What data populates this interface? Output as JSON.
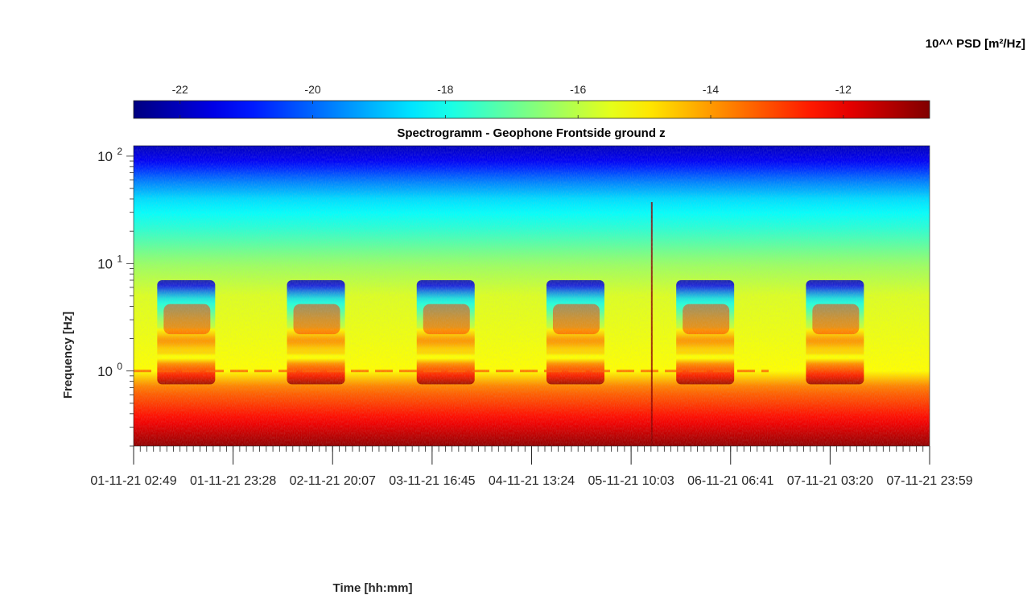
{
  "chart_data": {
    "type": "heatmap",
    "title": "Spectrogramm - Geophone Frontside ground z",
    "xlabel": "Time [hh:mm]",
    "ylabel": "Frequency [Hz]",
    "colorbar": {
      "label": "10^^ PSD [m²/Hz]",
      "colormap": "jet",
      "range": [
        -22.7,
        -10.7
      ],
      "ticks": [
        -22,
        -20,
        -18,
        -16,
        -14,
        -12
      ],
      "tick_labels": [
        "-22",
        "-20",
        "-18",
        "-16",
        "-14",
        "-12"
      ]
    },
    "x_tick_labels": [
      "01-11-21  02:49",
      "01-11-21  23:28",
      "02-11-21  20:07",
      "03-11-21  16:45",
      "04-11-21  13:24",
      "05-11-21  10:03",
      "06-11-21  06:41",
      "07-11-21  03:20",
      "07-11-21  23:59"
    ],
    "xlim": [
      "01-11-21 02:49",
      "07-11-21 23:59"
    ],
    "y_scale": "log",
    "ylim": [
      0.2,
      125
    ],
    "y_ticks": [
      1,
      10,
      100
    ],
    "y_tick_labels": [
      {
        "base": "10",
        "exp": "0"
      },
      {
        "base": "10",
        "exp": "1"
      },
      {
        "base": "10",
        "exp": "2"
      }
    ],
    "features": {
      "daytime_activity_band_hz": [
        2.0,
        5.0
      ],
      "daytime_activity_days": 6,
      "constant_line_hz": 1.0,
      "transient_event_time": "05-11-21 ~09:00",
      "grid": false
    }
  }
}
